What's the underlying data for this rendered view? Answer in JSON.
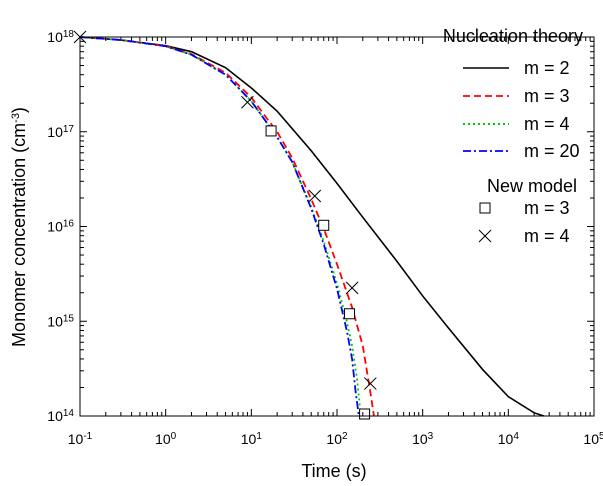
{
  "chart_data": {
    "type": "line",
    "xscale": "log",
    "yscale": "log",
    "xlim": [
      0.1,
      100000
    ],
    "ylim": [
      100000000000000.0,
      1e+18
    ],
    "xlabel": "Time (s)",
    "ylabel": "Monomer concentration (cm",
    "ylabel_sup": "-3",
    "ylabel_close": ")",
    "x_ticks": [
      {
        "value": 0.1,
        "base": "10",
        "exp": "-1"
      },
      {
        "value": 1,
        "base": "10",
        "exp": "0"
      },
      {
        "value": 10,
        "base": "10",
        "exp": "1"
      },
      {
        "value": 100,
        "base": "10",
        "exp": "2"
      },
      {
        "value": 1000,
        "base": "10",
        "exp": "3"
      },
      {
        "value": 10000,
        "base": "10",
        "exp": "4"
      },
      {
        "value": 100000,
        "base": "10",
        "exp": "5"
      }
    ],
    "y_ticks": [
      {
        "value": 100000000000000.0,
        "base": "10",
        "exp": "14"
      },
      {
        "value": 1000000000000000.0,
        "base": "10",
        "exp": "15"
      },
      {
        "value": 1e+16,
        "base": "10",
        "exp": "16"
      },
      {
        "value": 1e+17,
        "base": "10",
        "exp": "17"
      },
      {
        "value": 1e+18,
        "base": "10",
        "exp": "18"
      }
    ],
    "legend_placement": "right",
    "legend_groups": [
      {
        "title": "Nucleation theory",
        "members": [
          "m = 2",
          "m = 3",
          "m = 4",
          "m = 20"
        ]
      },
      {
        "title": "New model",
        "members": [
          "m = 3 (new model)",
          "m = 4 (new model)"
        ]
      }
    ],
    "series": [
      {
        "name": "m = 2",
        "group": "Nucleation theory",
        "style": "solid",
        "color": "#000000",
        "points": [
          [
            0.1,
            1e+18
          ],
          [
            0.3,
            9.3e+17
          ],
          [
            1,
            8.1e+17
          ],
          [
            2,
            7e+17
          ],
          [
            5,
            4.75e+17
          ],
          [
            10,
            2.9e+17
          ],
          [
            20,
            1.65e+17
          ],
          [
            50,
            6.3e+16
          ],
          [
            100,
            2.85e+16
          ],
          [
            200,
            1.25e+16
          ],
          [
            500,
            4300000000000000.0
          ],
          [
            1000,
            1850000000000000.0
          ],
          [
            2000,
            850000000000000.0
          ],
          [
            5000,
            310000000000000.0
          ],
          [
            10000,
            160000000000000.0
          ],
          [
            20000,
            108000000000000.0
          ],
          [
            26000,
            100000000000000.0
          ]
        ]
      },
      {
        "name": "m = 3",
        "group": "Nucleation theory",
        "style": "dash",
        "color": "#ff0000",
        "points": [
          [
            0.1,
            1e+18
          ],
          [
            0.3,
            9.3e+17
          ],
          [
            1,
            8e+17
          ],
          [
            2,
            6.6e+17
          ],
          [
            5,
            4.2e+17
          ],
          [
            10,
            2.3e+17
          ],
          [
            15,
            1.4e+17
          ],
          [
            20,
            1e+17
          ],
          [
            30,
            5.3e+16
          ],
          [
            50,
            1.95e+16
          ],
          [
            70,
            9500000000000000.0
          ],
          [
            100,
            4000000000000000.0
          ],
          [
            150,
            1400000000000000.0
          ],
          [
            200,
            550000000000000.0
          ],
          [
            250,
            160000000000000.0
          ],
          [
            270,
            100000000000000.0
          ]
        ]
      },
      {
        "name": "m = 4",
        "group": "Nucleation theory",
        "style": "dot",
        "color": "#00cc00",
        "points": [
          [
            0.1,
            1e+18
          ],
          [
            0.3,
            9.3e+17
          ],
          [
            1,
            8e+17
          ],
          [
            2,
            6.5e+17
          ],
          [
            5,
            4e+17
          ],
          [
            10,
            2.1e+17
          ],
          [
            20,
            8.8e+16
          ],
          [
            30,
            4.8e+16
          ],
          [
            50,
            1.6e+16
          ],
          [
            70,
            7000000000000000.0
          ],
          [
            100,
            2500000000000000.0
          ],
          [
            130,
            1000000000000000.0
          ],
          [
            150,
            550000000000000.0
          ],
          [
            170,
            260000000000000.0
          ],
          [
            190,
            100000000000000.0
          ]
        ]
      },
      {
        "name": "m = 20",
        "group": "Nucleation theory",
        "style": "dashdot",
        "color": "#0000ff",
        "points": [
          [
            0.1,
            1e+18
          ],
          [
            0.3,
            9.3e+17
          ],
          [
            1,
            8e+17
          ],
          [
            2,
            6.5e+17
          ],
          [
            5,
            4e+17
          ],
          [
            10,
            2.1e+17
          ],
          [
            20,
            8.8e+16
          ],
          [
            30,
            4.8e+16
          ],
          [
            50,
            1.55e+16
          ],
          [
            70,
            6500000000000000.0
          ],
          [
            100,
            2200000000000000.0
          ],
          [
            130,
            800000000000000.0
          ],
          [
            150,
            400000000000000.0
          ],
          [
            165,
            180000000000000.0
          ],
          [
            180,
            100000000000000.0
          ]
        ]
      }
    ],
    "markers": [
      {
        "name": "m = 3 (new model)",
        "label": "m = 3",
        "group": "New model",
        "symbol": "square",
        "points": [
          [
            17,
            1.02e+17
          ],
          [
            70,
            1.03e+16
          ],
          [
            140,
            1200000000000000.0
          ],
          [
            210,
            105000000000000.0
          ]
        ]
      },
      {
        "name": "m = 4 (new model)",
        "label": "m = 4",
        "group": "New model",
        "symbol": "cross",
        "points": [
          [
            0.1,
            1e+18
          ],
          [
            9,
            2.05e+17
          ],
          [
            55,
            2.1e+16
          ],
          [
            150,
            2250000000000000.0
          ],
          [
            245,
            220000000000000.0
          ]
        ]
      }
    ]
  }
}
